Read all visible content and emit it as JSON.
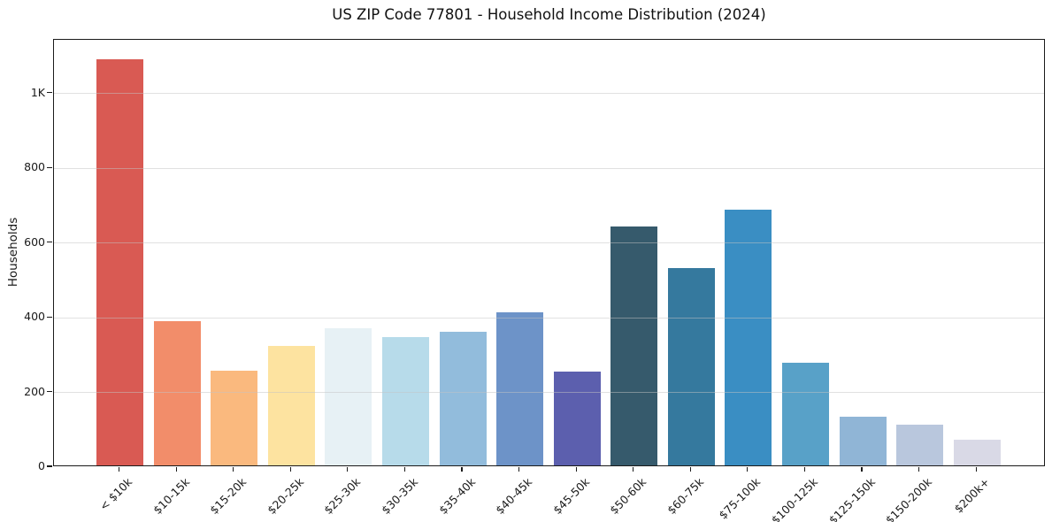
{
  "figure": {
    "background": "#ffffff",
    "text_color": "#1a1a1a",
    "spine_color": "#1a1a1a",
    "gridline_color": "#c3c3c3"
  },
  "chart_data": {
    "type": "bar",
    "title": "US ZIP Code 77801 - Household Income Distribution (2024)",
    "xlabel": "",
    "ylabel": "Households",
    "categories": [
      "< $10k",
      "$10-15k",
      "$15-20k",
      "$20-25k",
      "$25-30k",
      "$30-35k",
      "$35-40k",
      "$40-45k",
      "$45-50k",
      "$50-60k",
      "$60-75k",
      "$75-100k",
      "$100-125k",
      "$125-150k",
      "$150-200k",
      "$200k+"
    ],
    "values": [
      1087,
      386,
      253,
      320,
      366,
      343,
      357,
      409,
      251,
      640,
      528,
      684,
      274,
      130,
      109,
      68
    ],
    "bar_colors": [
      "#d95a53",
      "#f28d6a",
      "#fab97e",
      "#fde3a0",
      "#e7f1f5",
      "#b7dbea",
      "#92bcdc",
      "#6d93c8",
      "#5c5fae",
      "#365a6c",
      "#35799e",
      "#3a8ec3",
      "#58a1c8",
      "#90b5d6",
      "#b9c7dd",
      "#d9d9e6"
    ],
    "y_ticks": {
      "values": [
        0,
        200,
        400,
        600,
        800,
        1000
      ],
      "labels": [
        "0",
        "200",
        "400",
        "600",
        "800",
        "1K"
      ]
    },
    "ylim": [
      0,
      1144
    ],
    "grid": {
      "axis": "y",
      "over_bars": true
    },
    "legend_position": "none"
  }
}
